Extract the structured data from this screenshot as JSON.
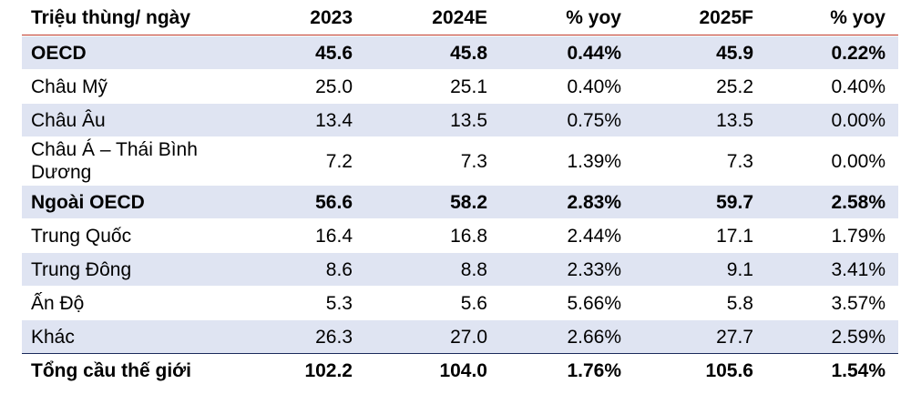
{
  "table": {
    "headers": [
      "Triệu thùng/ ngày",
      "2023",
      "2024E",
      "% yoy",
      "2025F",
      "% yoy"
    ],
    "rows": [
      {
        "label": "OECD",
        "v2023": "45.6",
        "v2024": "45.8",
        "yoy2024": "0.44%",
        "v2025": "45.9",
        "yoy2025": "0.22%"
      },
      {
        "label": "Châu Mỹ",
        "v2023": "25.0",
        "v2024": "25.1",
        "yoy2024": "0.40%",
        "v2025": "25.2",
        "yoy2025": "0.40%"
      },
      {
        "label": "Châu Âu",
        "v2023": "13.4",
        "v2024": "13.5",
        "yoy2024": "0.75%",
        "v2025": "13.5",
        "yoy2025": "0.00%"
      },
      {
        "label": "Châu Á – Thái Bình Dương",
        "v2023": "7.2",
        "v2024": "7.3",
        "yoy2024": "1.39%",
        "v2025": "7.3",
        "yoy2025": "0.00%"
      },
      {
        "label": "Ngoài OECD",
        "v2023": "56.6",
        "v2024": "58.2",
        "yoy2024": "2.83%",
        "v2025": "59.7",
        "yoy2025": "2.58%"
      },
      {
        "label": "Trung Quốc",
        "v2023": "16.4",
        "v2024": "16.8",
        "yoy2024": "2.44%",
        "v2025": "17.1",
        "yoy2025": "1.79%"
      },
      {
        "label": "Trung Đông",
        "v2023": "8.6",
        "v2024": "8.8",
        "yoy2024": "2.33%",
        "v2025": "9.1",
        "yoy2025": "3.41%"
      },
      {
        "label": "Ấn Độ",
        "v2023": "5.3",
        "v2024": "5.6",
        "yoy2024": "5.66%",
        "v2025": "5.8",
        "yoy2025": "3.57%"
      },
      {
        "label": "Khác",
        "v2023": "26.3",
        "v2024": "27.0",
        "yoy2024": "2.66%",
        "v2025": "27.7",
        "yoy2025": "2.59%"
      },
      {
        "label": "Tổng cầu thế giới",
        "v2023": "102.2",
        "v2024": "104.0",
        "yoy2024": "1.76%",
        "v2025": "105.6",
        "yoy2025": "1.54%"
      }
    ]
  },
  "colors": {
    "shaded_row": "#dfe4f2",
    "header_rule": "#c0392b",
    "total_rule": "#1a2a5a"
  }
}
